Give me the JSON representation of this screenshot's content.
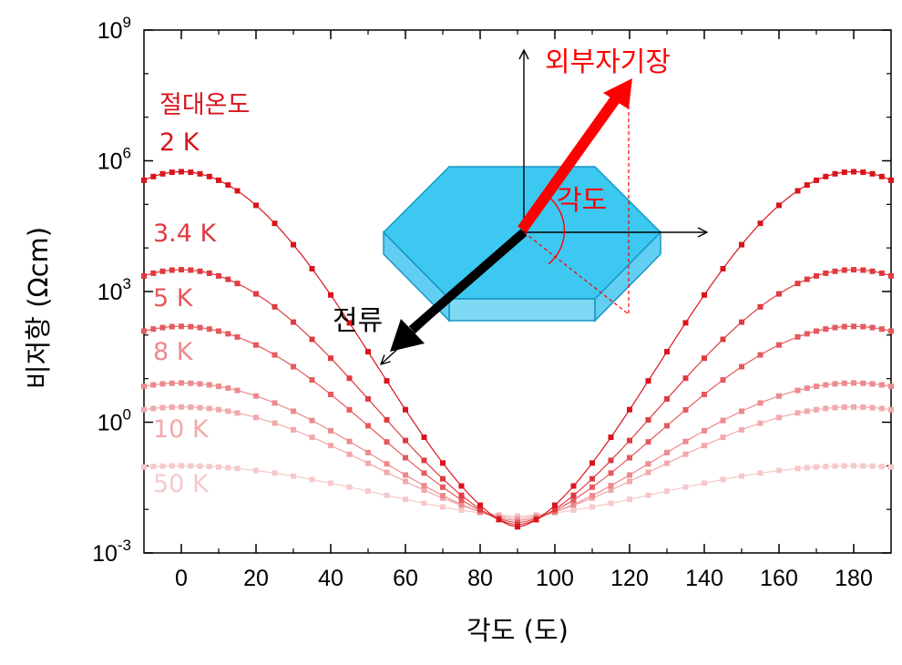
{
  "chart_data": {
    "type": "line",
    "title": "",
    "xlabel": "각도 (도)",
    "ylabel": "비저항 (Ωcm)",
    "xlim": [
      -10,
      190
    ],
    "ylim_log10": [
      -3,
      9
    ],
    "y_scale": "log",
    "x_ticks": [
      "0",
      "20",
      "40",
      "60",
      "80",
      "100",
      "120",
      "140",
      "160",
      "180"
    ],
    "x_tick_values": [
      0,
      20,
      40,
      60,
      80,
      100,
      120,
      140,
      160,
      180
    ],
    "y_ticks": [
      {
        "base": "10",
        "exp": "-3",
        "value": -3
      },
      {
        "base": "10",
        "exp": "0",
        "value": 0
      },
      {
        "base": "10",
        "exp": "3",
        "value": 3
      },
      {
        "base": "10",
        "exp": "6",
        "value": 6
      },
      {
        "base": "10",
        "exp": "9",
        "value": 9
      }
    ],
    "grid": false,
    "legend_header": "절대온도",
    "series": [
      {
        "name": "2 K",
        "color": "#d9141c",
        "peak_log10": 5.75,
        "min_log10": -2.4
      },
      {
        "name": "3.4 K",
        "color": "#df3a40",
        "peak_log10": 3.5,
        "min_log10": -2.35
      },
      {
        "name": "5 K",
        "color": "#e55a5e",
        "peak_log10": 2.2,
        "min_log10": -2.3
      },
      {
        "name": "8 K",
        "color": "#ec8a8d",
        "peak_log10": 0.9,
        "min_log10": -2.25
      },
      {
        "name": "10 K",
        "color": "#f2a9ac",
        "peak_log10": 0.35,
        "min_log10": -2.2
      },
      {
        "name": "50 K",
        "color": "#f6c9cb",
        "peak_log10": -1.0,
        "min_log10": -2.15
      }
    ]
  },
  "diagram": {
    "field_label": "외부자기장",
    "angle_label": "각도",
    "current_label": "전류"
  },
  "colors": {
    "crystal_top": "#3cc8f0",
    "crystal_side": "#7fd9f5",
    "crystal_edge": "#1596c6",
    "field_arrow": "#ff0000",
    "current_arrow": "#000000"
  }
}
